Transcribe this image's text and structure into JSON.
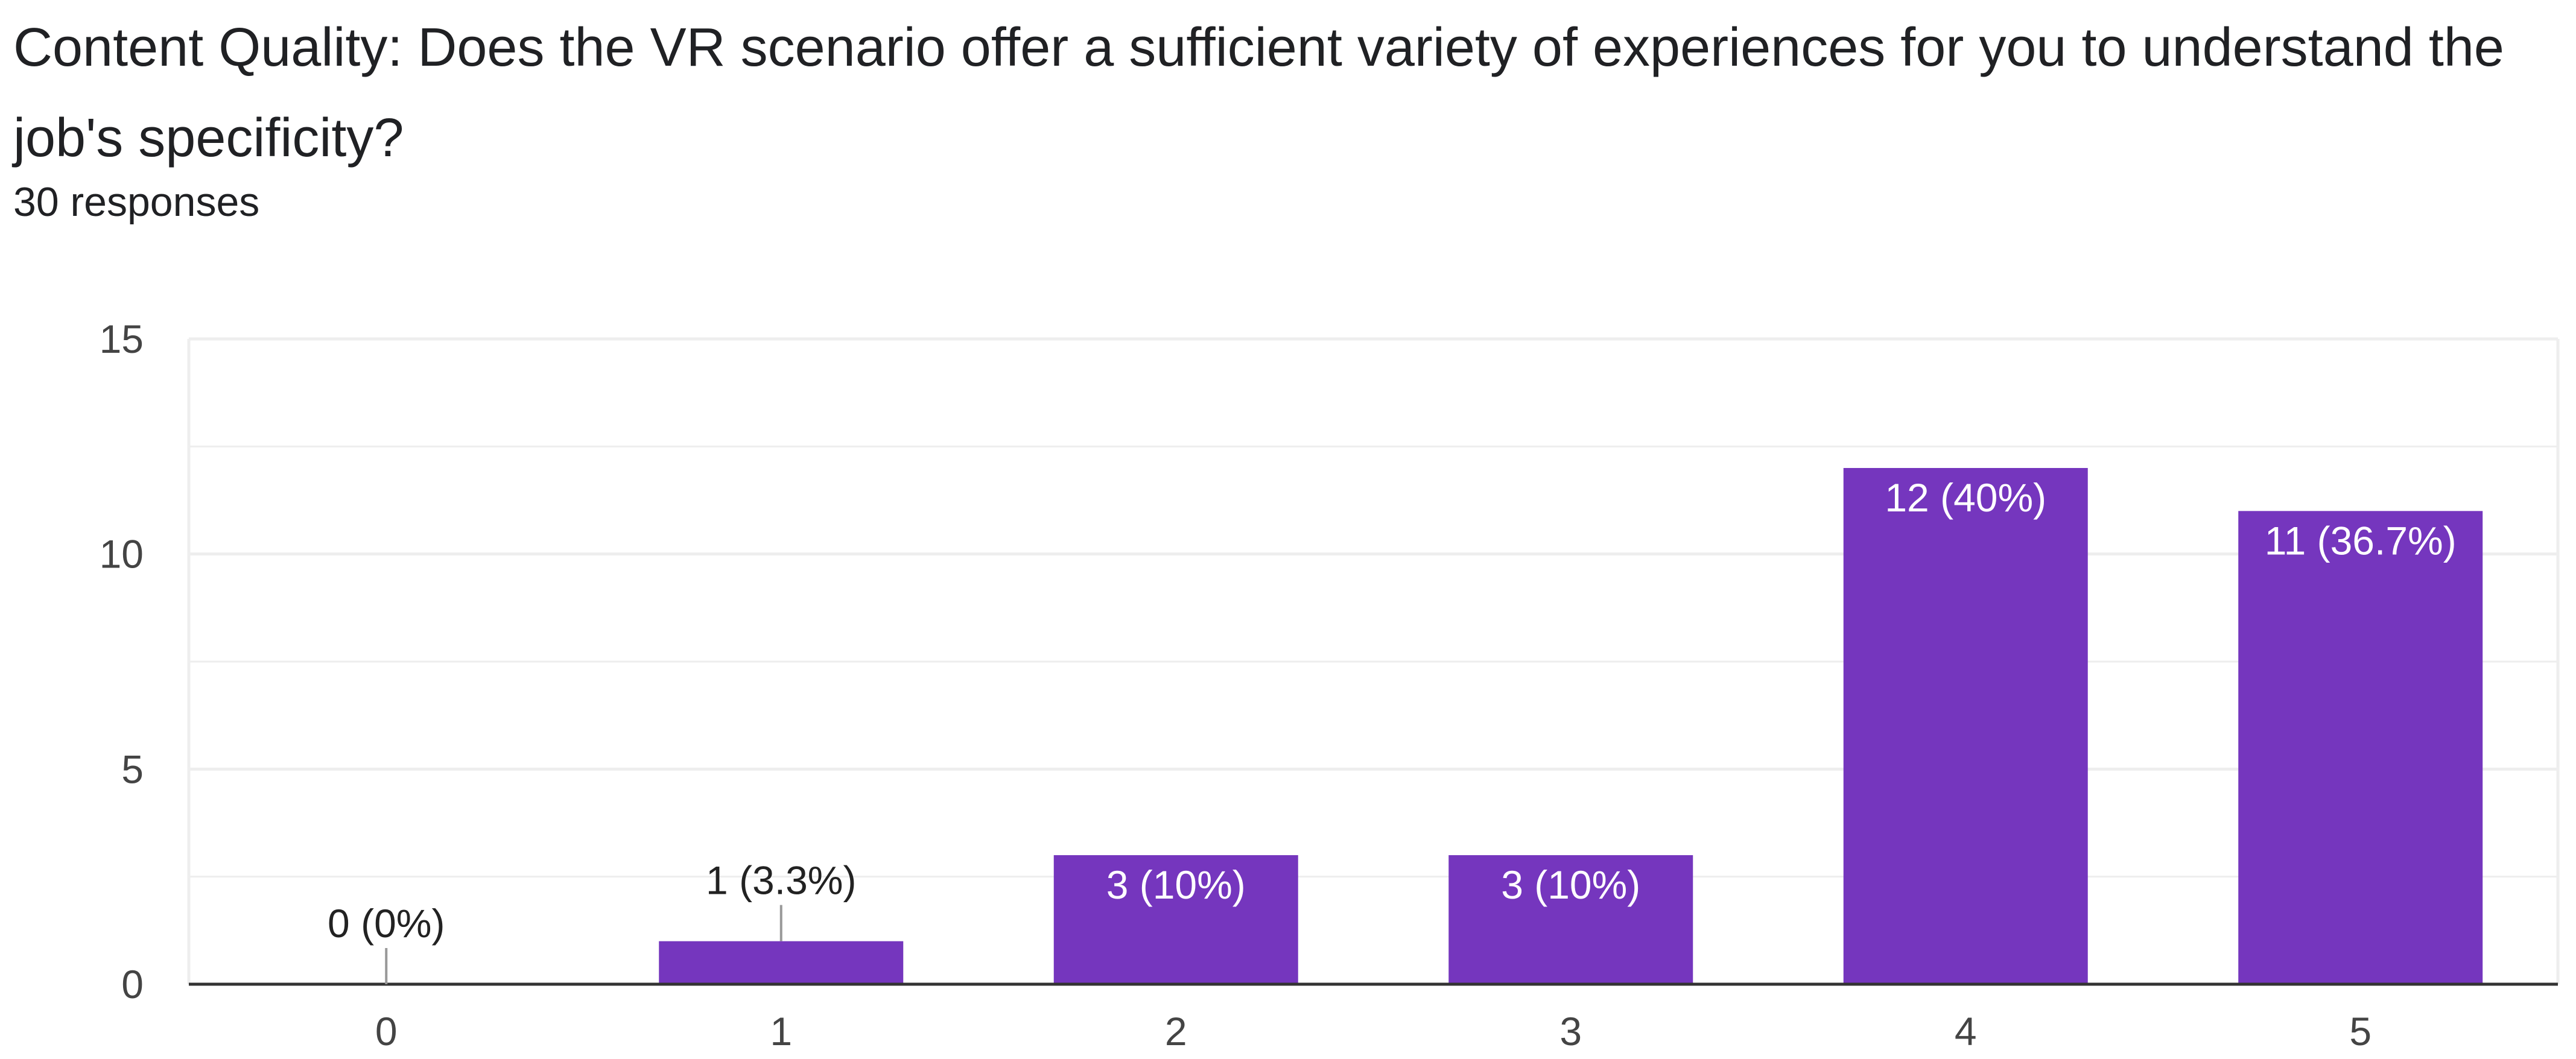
{
  "question": {
    "title": "Content Quality: Does the VR scenario offer a sufficient variety of experiences for you to understand the job's specificity?",
    "response_count": "30 responses"
  },
  "colors": {
    "bar": "#7536be",
    "gridline": "#eeeeee",
    "axis": "#333333",
    "label_inside": "#ffffff",
    "label_outside": "#222222",
    "leader_line": "#999999"
  },
  "chart_data": {
    "type": "bar",
    "title": "",
    "xlabel": "",
    "ylabel": "",
    "categories": [
      "0",
      "1",
      "2",
      "3",
      "4",
      "5"
    ],
    "values": [
      0,
      1,
      3,
      3,
      12,
      11
    ],
    "data_labels": [
      "0 (0%)",
      "1 (3.3%)",
      "3 (10%)",
      "3 (10%)",
      "12 (40%)",
      "11 (36.7%)"
    ],
    "ylim": [
      0,
      15
    ],
    "y_ticks": [
      0,
      5,
      10,
      15
    ],
    "y_tick_labels": [
      "0",
      "5",
      "10",
      "15"
    ],
    "minor_gridlines": [
      2.5,
      7.5,
      12.5
    ],
    "grid": true,
    "legend": "none"
  }
}
